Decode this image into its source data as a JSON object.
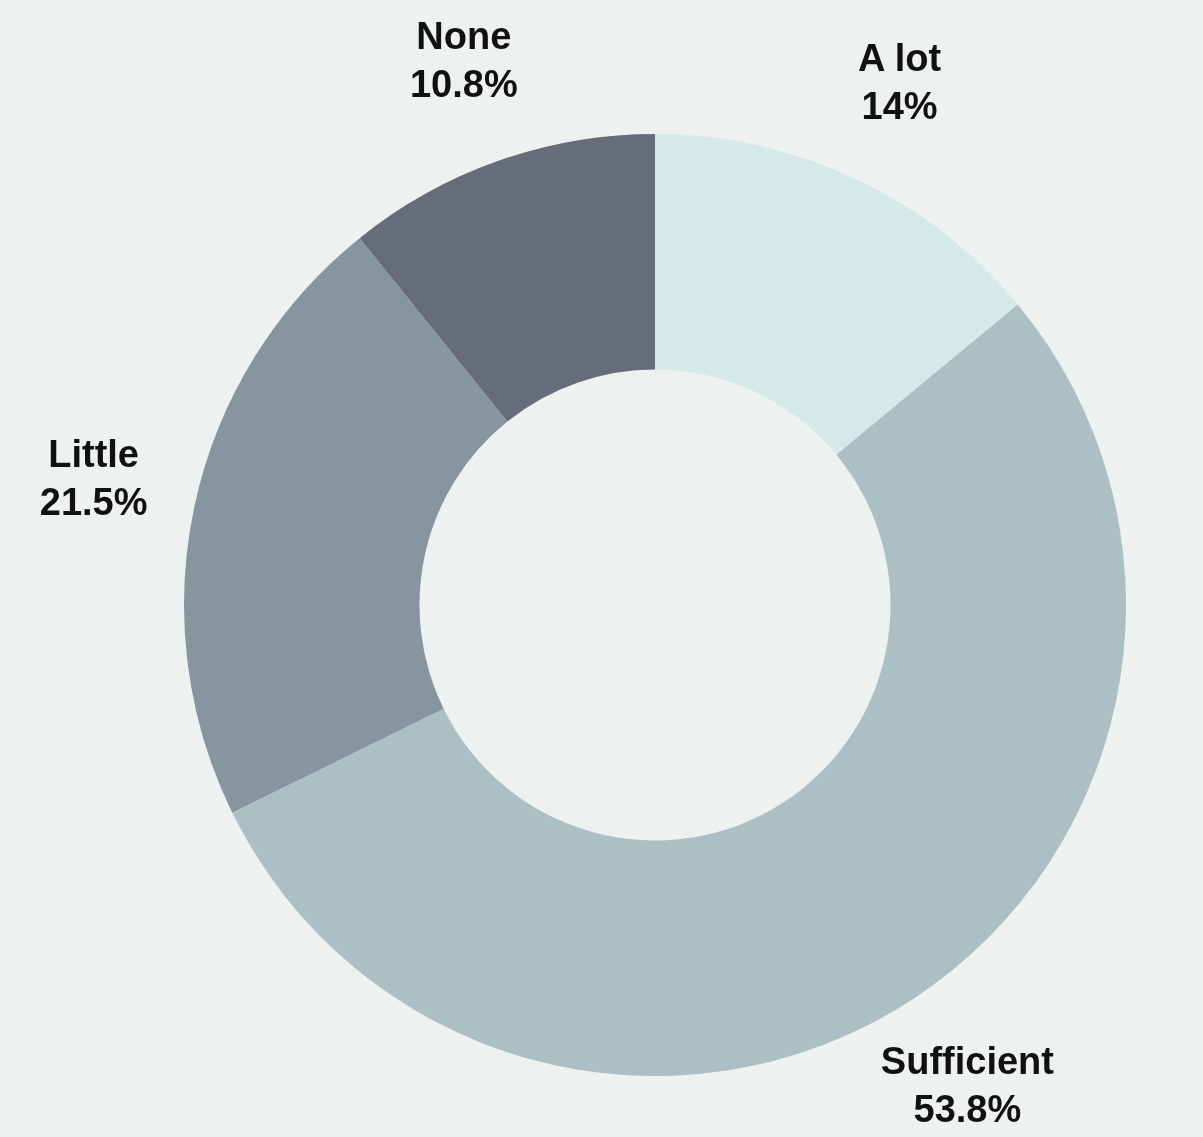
{
  "chart_data": {
    "type": "donut",
    "categories": [
      "A lot",
      "Sufficient",
      "Little",
      "None"
    ],
    "values": [
      14,
      53.8,
      21.5,
      10.8
    ],
    "value_labels": [
      "14%",
      "53.8%",
      "21.5%",
      "10.8%"
    ],
    "colors": [
      "#d5e9e8",
      "#acbfc5",
      "#8795a0",
      "#666d79"
    ],
    "legend": false
  }
}
